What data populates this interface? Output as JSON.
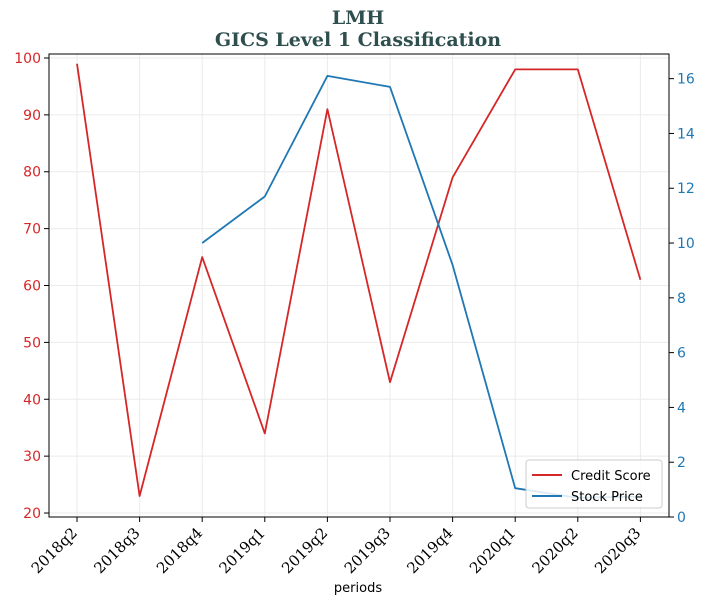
{
  "chart_data": {
    "type": "line",
    "title": "LMH",
    "subtitle": "GICS Level 1 Classification",
    "xlabel": "periods",
    "categories": [
      "2018q2",
      "2018q3",
      "2018q4",
      "2019q1",
      "2019q2",
      "2019q3",
      "2019q4",
      "2020q1",
      "2020q2",
      "2020q3"
    ],
    "y_left": {
      "ylim": [
        19.3,
        100.7
      ],
      "ticks": [
        20,
        30,
        40,
        50,
        60,
        70,
        80,
        90,
        100
      ]
    },
    "y_right": {
      "ylim": [
        0,
        16.9
      ],
      "ticks": [
        0,
        2,
        4,
        6,
        8,
        10,
        12,
        14,
        16
      ]
    },
    "series": [
      {
        "name": "Credit Score",
        "axis": "left",
        "color": "#d62728",
        "values": [
          99,
          23,
          65,
          34,
          91,
          43,
          79,
          98,
          98,
          61
        ]
      },
      {
        "name": "Stock Price",
        "axis": "right",
        "color": "#1f77b4",
        "values": [
          null,
          null,
          10.0,
          11.7,
          16.1,
          15.7,
          9.2,
          1.05,
          0.7,
          0.75
        ]
      }
    ],
    "grid": true,
    "legend_position": "lower-right",
    "colors": {
      "title": "#2f4f4f",
      "left_axis": "#d62728",
      "right_axis": "#1f77b4"
    }
  }
}
